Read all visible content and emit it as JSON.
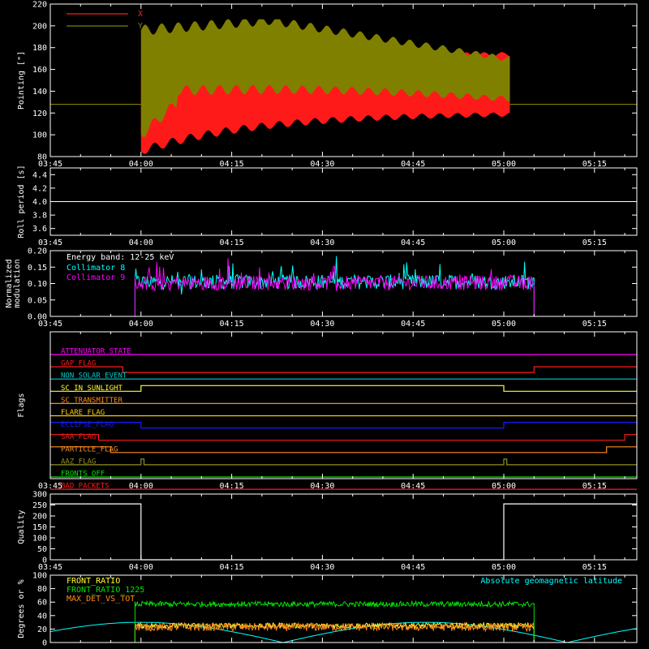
{
  "time_ticks": [
    "03:45",
    "04:00",
    "04:15",
    "04:30",
    "04:45",
    "05:00",
    "05:15"
  ],
  "colors": {
    "red": "#ff1a1a",
    "olive": "#808000",
    "white": "#ffffff",
    "cyan": "#00ffff",
    "magenta": "#ff00ff",
    "green": "#00e600",
    "orange": "#ff8c1a",
    "yellow": "#ffff33",
    "blue": "#1a1aff",
    "gold": "#ffcc00",
    "teal": "#00c8c8",
    "aaz": "#909020"
  },
  "chart_data": [
    {
      "type": "line",
      "ylabel": "Pointing [\"]",
      "ylim": [
        80,
        220
      ],
      "yticks": [
        "80",
        "100",
        "120",
        "140",
        "160",
        "180",
        "200",
        "220"
      ],
      "x_range": [
        "03:45",
        "05:22"
      ],
      "legend": [
        {
          "name": "X",
          "color": "#ff1a1a"
        },
        {
          "name": "Y",
          "color": "#808000"
        }
      ],
      "series": [
        {
          "name": "X",
          "baseline": 128,
          "active_interval": [
            "04:00",
            "05:01"
          ],
          "start_range": [
            85,
            150
          ],
          "end_range": [
            120,
            175
          ]
        },
        {
          "name": "Y",
          "baseline": 128,
          "active_interval": [
            "04:00",
            "05:01"
          ],
          "start_range": [
            100,
            200
          ],
          "end_range": [
            130,
            170
          ]
        }
      ]
    },
    {
      "type": "line",
      "ylabel": "Roll period [s]",
      "ylim": [
        3.5,
        4.5
      ],
      "yticks": [
        "3.6",
        "3.8",
        "4.0",
        "4.2",
        "4.4"
      ],
      "x_range": [
        "03:45",
        "05:22"
      ],
      "series": [
        {
          "value": 4.0
        }
      ]
    },
    {
      "type": "line",
      "ylabel": [
        "Normalized",
        "modulation"
      ],
      "ylim": [
        0,
        0.2
      ],
      "yticks": [
        "0.00",
        "0.05",
        "0.10",
        "0.15",
        "0.20"
      ],
      "annotation": "Energy band: 12-25 keV",
      "legend": [
        {
          "name": "Collimator 8",
          "color": "#00ffff"
        },
        {
          "name": "Collimator 9",
          "color": "#ff00ff"
        }
      ],
      "series": [
        {
          "name": "Collimator 8",
          "active_interval": [
            "03:59",
            "05:05"
          ],
          "mean": 0.105
        },
        {
          "name": "Collimator 9",
          "active_interval": [
            "03:59",
            "05:05"
          ],
          "mean": 0.102
        }
      ]
    },
    {
      "type": "line",
      "ylabel": "Flags",
      "flags": [
        {
          "name": "ATTENUATOR_STATE",
          "color": "#ff00ff",
          "transitions": []
        },
        {
          "name": "GAP_FLAG",
          "color": "#ff1a1a",
          "transitions": [
            [
              "03:45",
              0
            ],
            [
              "03:57",
              -1
            ],
            [
              "05:05",
              0
            ]
          ]
        },
        {
          "name": "NON_SOLAR_EVENT",
          "color": "#00c8c8",
          "transitions": []
        },
        {
          "name": "SC_IN_SUNLIGHT",
          "color": "#ffff33",
          "transitions": [
            [
              "03:45",
              0
            ],
            [
              "04:00",
              1
            ],
            [
              "05:00",
              0
            ]
          ]
        },
        {
          "name": "SC_TRANSMITTER",
          "color": "#ff8c1a",
          "transitions": []
        },
        {
          "name": "FLARE_FLAG",
          "color": "#ffcc00",
          "transitions": []
        },
        {
          "name": "ECLIPSE_FLAG",
          "color": "#1a1aff",
          "transitions": [
            [
              "03:45",
              1
            ],
            [
              "04:00",
              0
            ],
            [
              "05:00",
              1
            ]
          ]
        },
        {
          "name": "SAA_FLAG",
          "color": "#ff1a1a",
          "transitions": [
            [
              "03:45",
              1
            ],
            [
              "03:53",
              0
            ],
            [
              "05:20",
              1
            ]
          ]
        },
        {
          "name": "PARTICLE_FLAG",
          "color": "#ff8c1a",
          "transitions": [
            [
              "03:45",
              1
            ],
            [
              "03:55",
              0
            ],
            [
              "05:17",
              1
            ]
          ]
        },
        {
          "name": "AAZ_FLAG",
          "color": "#909020",
          "transitions": [
            [
              "03:45",
              0
            ],
            [
              "04:00",
              1
            ],
            [
              "04:00.5",
              0
            ],
            [
              "05:00",
              1
            ],
            [
              "05:00.5",
              0
            ]
          ]
        },
        {
          "name": "FRONTS_OFF",
          "color": "#00e600",
          "transitions": []
        },
        {
          "name": "BAD_PACKETS",
          "color": "#ff1a1a",
          "transitions": []
        }
      ]
    },
    {
      "type": "line",
      "ylabel": "Quality",
      "ylim": [
        0,
        300
      ],
      "yticks": [
        "0",
        "50",
        "100",
        "150",
        "200",
        "250",
        "300"
      ],
      "series": [
        {
          "name": "Quality",
          "segments": [
            [
              "03:45",
              "04:00",
              255
            ],
            [
              "04:00",
              "05:00",
              0
            ],
            [
              "05:00",
              "05:22",
              255
            ]
          ]
        }
      ]
    },
    {
      "type": "line",
      "ylabel": "Degrees or %",
      "ylim": [
        0,
        100
      ],
      "yticks": [
        "0",
        "20",
        "40",
        "60",
        "80",
        "100"
      ],
      "legend": [
        {
          "name": "FRONT_RATIO",
          "color": "#ffff33"
        },
        {
          "name": "FRONT_RATIO_1225",
          "color": "#00e600"
        },
        {
          "name": "MAX_DET_VS_TOT",
          "color": "#ff8c1a"
        },
        {
          "name": "Absolute geomagnetic latitude",
          "color": "#00ffff"
        }
      ],
      "series": [
        {
          "name": "FRONT_RATIO_1225",
          "active_interval": [
            "03:59",
            "05:05"
          ],
          "mean": 57
        },
        {
          "name": "MAX_DET_VS_TOT",
          "active_interval": [
            "03:59",
            "05:05"
          ],
          "mean": 23
        },
        {
          "name": "FRONT_RATIO",
          "active_interval": [
            "03:59",
            "05:05"
          ],
          "mean": 25
        },
        {
          "name": "Absolute geomagnetic latitude",
          "period_min": 47,
          "range": [
            0,
            30
          ]
        }
      ]
    }
  ]
}
